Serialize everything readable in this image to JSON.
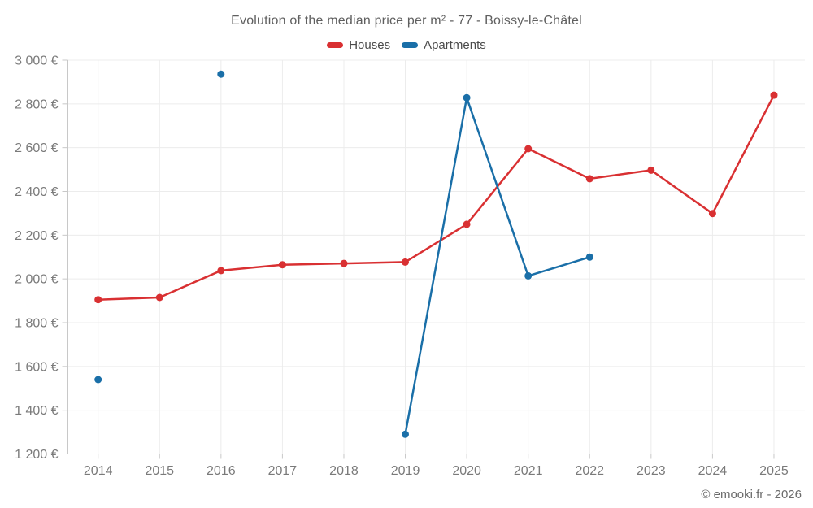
{
  "header": {
    "title": "Evolution of the median price per m² - 77 - Boissy-le-Châtel"
  },
  "legend": {
    "items": [
      {
        "label": "Houses",
        "color": "#d93032"
      },
      {
        "label": "Apartments",
        "color": "#1a6fa8"
      }
    ]
  },
  "footer": {
    "credit": "© emooki.fr - 2026"
  },
  "chart_data": {
    "type": "line",
    "title": "Evolution of the median price per m² - 77 - Boissy-le-Châtel",
    "x": [
      "2014",
      "2015",
      "2016",
      "2017",
      "2018",
      "2019",
      "2020",
      "2021",
      "2022",
      "2023",
      "2024",
      "2025"
    ],
    "series": [
      {
        "name": "Houses",
        "color": "#d93032",
        "values": [
          1905,
          1915,
          2038,
          2065,
          2071,
          2077,
          2250,
          2595,
          2458,
          2497,
          2299,
          2840
        ]
      },
      {
        "name": "Apartments",
        "color": "#1a6fa8",
        "values": [
          1540,
          null,
          2936,
          null,
          null,
          1290,
          2828,
          2014,
          2100,
          null,
          null,
          null
        ]
      }
    ],
    "ylim": [
      1200,
      3000
    ],
    "ytick_step": 200,
    "ytick_labels": [
      "3 000 €",
      "2 800 €",
      "2 600 €",
      "2 400 €",
      "2 200 €",
      "2 000 €",
      "1 800 €",
      "1 600 €",
      "1 400 €",
      "1 200 €"
    ],
    "ytick_values": [
      3000,
      2800,
      2600,
      2400,
      2200,
      2000,
      1800,
      1600,
      1400,
      1200
    ],
    "grid": true,
    "legend_position": "top",
    "unit": "€"
  },
  "colors": {
    "grid": "#ececec",
    "axis": "#c8c8c8",
    "tick_label": "#7a7a7a"
  }
}
